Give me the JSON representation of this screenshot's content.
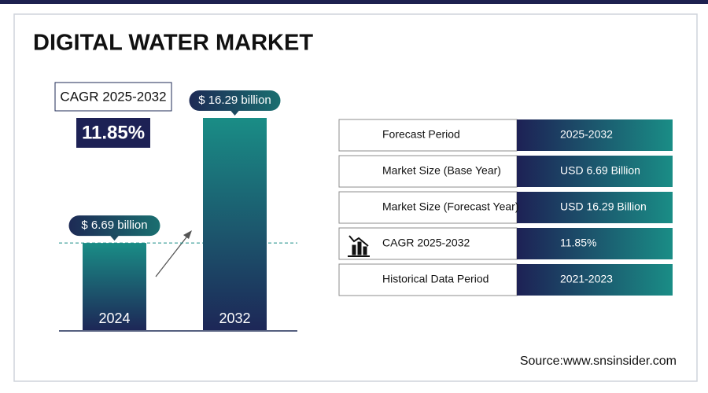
{
  "title": "DIGITAL WATER MARKET",
  "cagr": {
    "label": "CAGR 2025-2032",
    "value": "11.85%"
  },
  "chart_data": {
    "type": "bar",
    "categories": [
      "2024",
      "2032"
    ],
    "values": [
      6.69,
      16.29
    ],
    "value_labels": [
      "$ 6.69 billion",
      "$ 16.29 billion"
    ]
  },
  "table": {
    "rows": [
      [
        "Forecast Period",
        "2025-2032"
      ],
      [
        "Market Size (Base Year)",
        "USD 6.69 Billion"
      ],
      [
        "Market Size (Forecast Year)",
        "USD 16.29 Billion"
      ],
      [
        "CAGR 2025-2032",
        "11.85%"
      ],
      [
        "Historical Data Period",
        "2021-2023"
      ]
    ]
  },
  "source": "Source:www.snsinsider.com"
}
